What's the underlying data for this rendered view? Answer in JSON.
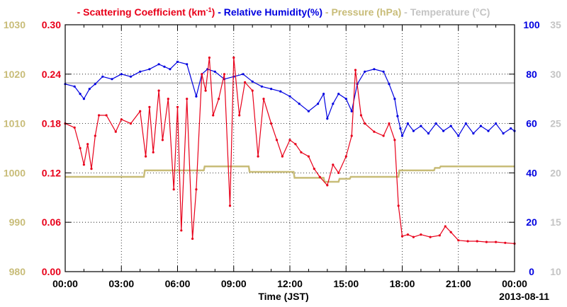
{
  "chart_data": {
    "type": "line",
    "title_segments": [
      {
        "text": "- Scattering Coefficient (km",
        "color": "#e8001a"
      },
      {
        "text": "-1",
        "color": "#e8001a",
        "sup": true
      },
      {
        "text": ") ",
        "color": "#e8001a"
      },
      {
        "text": "- Relative Humidity(%) ",
        "color": "#0000e0"
      },
      {
        "text": "- Pressure (hPa) ",
        "color": "#c8bc78"
      },
      {
        "text": "- Temperature (°C)",
        "color": "#c4c4c4"
      }
    ],
    "xlabel": "Time (JST)",
    "date_label": "2013-08-11",
    "x_ticks": [
      "00:00",
      "03:00",
      "06:00",
      "09:00",
      "12:00",
      "15:00",
      "18:00",
      "21:00",
      "00:00"
    ],
    "xlim_hours": [
      0,
      24
    ],
    "grid": true,
    "axes": {
      "scattering": {
        "ticks": [
          "0.00",
          "0.06",
          "0.12",
          "0.18",
          "0.24",
          "0.30"
        ],
        "min": 0,
        "max": 0.3,
        "color": "#e8001a"
      },
      "pressure": {
        "ticks": [
          "980",
          "990",
          "1000",
          "1010",
          "1020",
          "1030"
        ],
        "min": 980,
        "max": 1030,
        "color": "#c8bc78"
      },
      "humidity": {
        "ticks": [
          "0",
          "20",
          "40",
          "60",
          "80",
          "100"
        ],
        "min": 0,
        "max": 100,
        "color": "#0000e0"
      },
      "temperature": {
        "ticks": [
          "10",
          "15",
          "20",
          "25",
          "30",
          "35"
        ],
        "min": 10,
        "max": 35,
        "color": "#c4c4c4"
      }
    },
    "series": [
      {
        "key": "temperature",
        "color": "#c4c4c4",
        "axis": "temperature",
        "x": [
          0,
          24
        ],
        "y": [
          29.1,
          29.1
        ]
      },
      {
        "key": "pressure",
        "color": "#c8bc78",
        "axis": "pressure",
        "x": [
          0,
          4.2,
          4.25,
          7.4,
          7.45,
          9.8,
          9.85,
          12.2,
          12.25,
          13.8,
          13.85,
          14.6,
          14.65,
          15.2,
          15.25,
          17.8,
          17.85,
          19.7,
          19.75,
          20.0,
          20.05,
          24
        ],
        "y": [
          999.2,
          999.2,
          1000.5,
          1000.5,
          1001.3,
          1001.3,
          1000.2,
          1000.2,
          999.0,
          999.0,
          998.2,
          998.2,
          998.8,
          998.8,
          999.2,
          999.2,
          1000.5,
          1000.5,
          1001.0,
          1001.0,
          1001.3,
          1001.3
        ]
      },
      {
        "key": "humidity",
        "color": "#0000e0",
        "axis": "humidity",
        "x": [
          0,
          0.5,
          0.8,
          1.0,
          1.3,
          1.6,
          2.0,
          2.5,
          3.0,
          3.5,
          4.0,
          4.5,
          5.0,
          5.3,
          5.6,
          6.0,
          6.5,
          7.0,
          7.3,
          7.6,
          8.0,
          8.5,
          9.0,
          9.5,
          10.0,
          10.5,
          11.0,
          11.5,
          12.0,
          12.5,
          13.0,
          13.5,
          13.8,
          14.0,
          14.3,
          14.6,
          15.0,
          15.3,
          15.6,
          16.0,
          16.5,
          17.0,
          17.3,
          17.6,
          17.75,
          17.9,
          18.0,
          18.3,
          18.6,
          19.0,
          19.4,
          19.8,
          20.2,
          20.6,
          21.0,
          21.4,
          21.8,
          22.2,
          22.6,
          23.0,
          23.4,
          23.8,
          24.0
        ],
        "y": [
          76,
          75,
          72,
          70,
          74,
          76,
          79,
          78,
          80,
          79,
          81,
          82,
          84,
          83,
          82,
          85,
          84,
          71,
          80,
          82,
          81,
          78,
          79,
          80,
          77,
          75,
          74,
          73,
          71,
          68,
          65,
          68,
          72,
          62,
          68,
          72,
          70,
          65,
          76,
          81,
          82,
          81,
          76,
          70,
          63,
          58,
          55,
          60,
          57,
          59,
          56,
          60,
          57,
          59,
          55,
          60,
          56,
          59,
          57,
          60,
          56,
          58,
          57
        ]
      },
      {
        "key": "scattering",
        "color": "#e8001a",
        "axis": "scattering",
        "x": [
          0,
          0.5,
          0.8,
          1.0,
          1.2,
          1.4,
          1.6,
          1.8,
          2.2,
          2.7,
          3.0,
          3.5,
          4.0,
          4.3,
          4.5,
          4.7,
          5.0,
          5.2,
          5.5,
          5.8,
          6.0,
          6.2,
          6.5,
          6.8,
          7.0,
          7.3,
          7.5,
          7.7,
          7.9,
          8.2,
          8.5,
          8.8,
          9.0,
          9.3,
          9.6,
          10.0,
          10.3,
          10.6,
          11.0,
          11.3,
          11.6,
          12.0,
          12.3,
          12.6,
          13.0,
          13.3,
          13.6,
          14.0,
          14.3,
          14.6,
          15.0,
          15.3,
          15.5,
          15.8,
          16.0,
          16.5,
          17.0,
          17.3,
          17.6,
          17.8,
          18.0,
          18.3,
          18.6,
          19.0,
          19.5,
          20.0,
          20.3,
          20.6,
          21.0,
          21.5,
          22.0,
          22.5,
          23.0,
          23.5,
          24.0
        ],
        "y": [
          0.18,
          0.175,
          0.15,
          0.13,
          0.155,
          0.125,
          0.165,
          0.19,
          0.19,
          0.17,
          0.185,
          0.18,
          0.195,
          0.14,
          0.2,
          0.145,
          0.22,
          0.16,
          0.21,
          0.1,
          0.2,
          0.05,
          0.21,
          0.04,
          0.1,
          0.24,
          0.22,
          0.26,
          0.19,
          0.21,
          0.24,
          0.08,
          0.26,
          0.19,
          0.23,
          0.22,
          0.14,
          0.21,
          0.18,
          0.16,
          0.14,
          0.16,
          0.155,
          0.145,
          0.14,
          0.125,
          0.115,
          0.105,
          0.13,
          0.12,
          0.14,
          0.165,
          0.245,
          0.19,
          0.18,
          0.17,
          0.165,
          0.18,
          0.16,
          0.08,
          0.043,
          0.045,
          0.042,
          0.045,
          0.042,
          0.044,
          0.055,
          0.048,
          0.038,
          0.037,
          0.037,
          0.036,
          0.036,
          0.035,
          0.034
        ]
      }
    ]
  }
}
